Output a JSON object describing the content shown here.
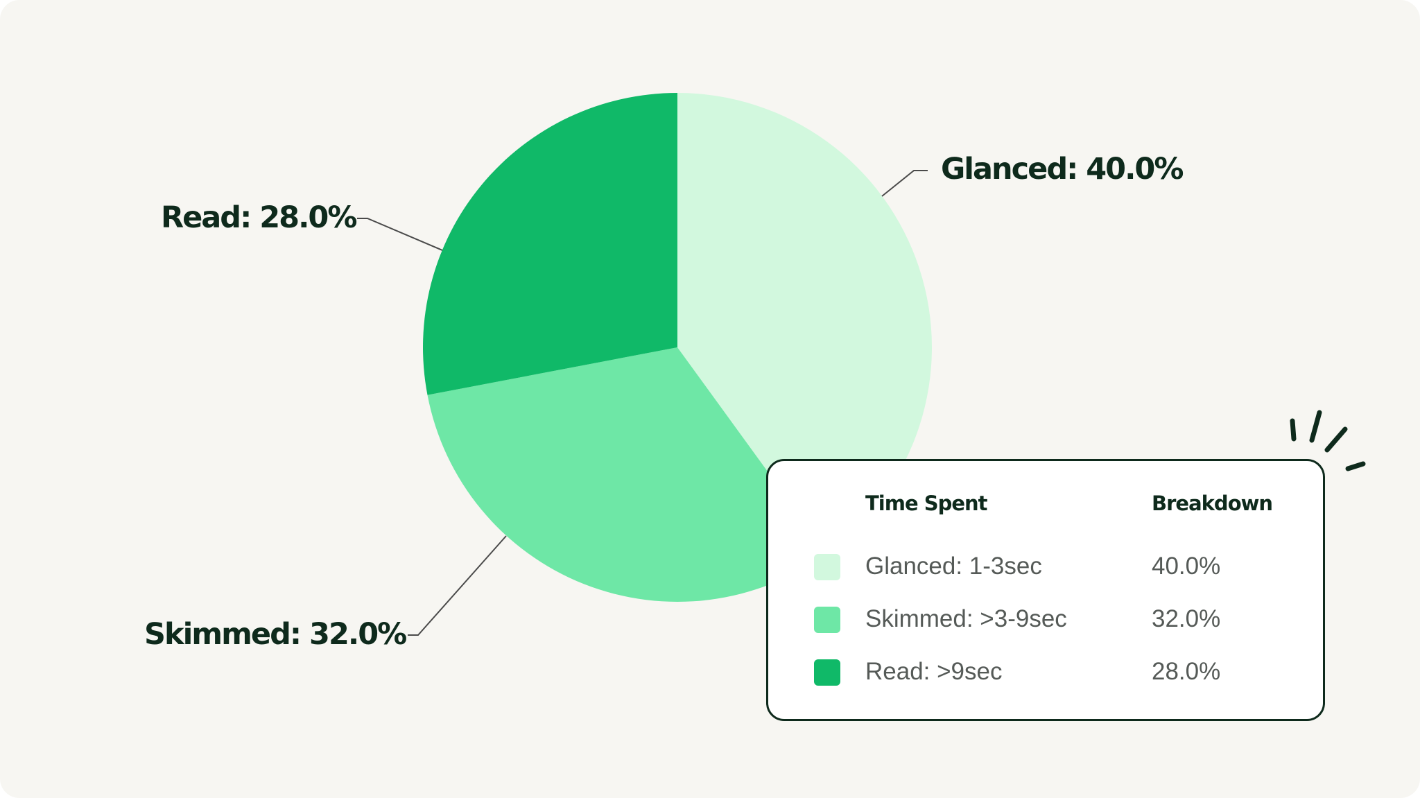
{
  "chart_data": {
    "type": "pie",
    "title": "",
    "slices": [
      {
        "name": "Glanced",
        "value": 40.0,
        "label": "Glanced: 40.0%",
        "color": "#d2f8de"
      },
      {
        "name": "Skimmed",
        "value": 32.0,
        "label": "Skimmed: 32.0%",
        "color": "#6ee7a6"
      },
      {
        "name": "Read",
        "value": 28.0,
        "label": "Read: 28.0%",
        "color": "#10b968"
      }
    ],
    "start_angle_deg": 0,
    "direction": "clockwise",
    "legend": {
      "placement": "bottom-right",
      "headers": {
        "category": "Time Spent",
        "value": "Breakdown"
      },
      "rows": [
        {
          "label": "Glanced: 1-3sec",
          "value": "40.0%",
          "color": "#d2f8de"
        },
        {
          "label": "Skimmed: >3-9sec",
          "value": "32.0%",
          "color": "#6ee7a6"
        },
        {
          "label": "Read: >9sec",
          "value": "28.0%",
          "color": "#10b968"
        }
      ]
    }
  },
  "colors": {
    "background": "#f7f6f2",
    "text_dark": "#0e2a1c",
    "text_muted": "#555a57",
    "leader_line": "#4a4a4a"
  },
  "decoration": {
    "sparkle_icon": "sparkle-lines-icon"
  }
}
